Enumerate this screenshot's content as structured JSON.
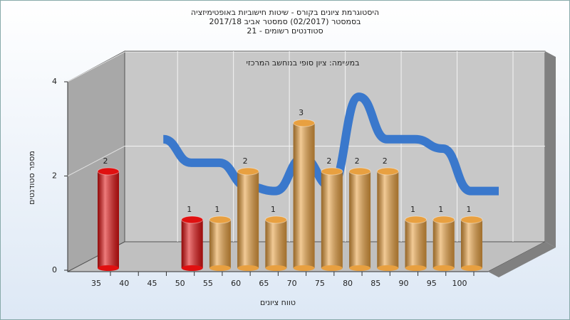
{
  "chart_data": {
    "type": "bar3d",
    "title": "היסטוגרמת ציונים בקורס - שיטות חישוביות באופטימיזציה",
    "subtitle_lines": [
      "בסמסטר  (02/2017)  סמסטר אביב 2017/18",
      "סטודנטים רשומים - 21"
    ],
    "annotation": "במשימה: ציון סופי במחשב המרכזי",
    "x_label": "טווח ציונים",
    "y_label": "מספר סטודנטים",
    "categories": [
      "35",
      "40",
      "45",
      "50",
      "55",
      "60",
      "65",
      "70",
      "75",
      "80",
      "85",
      "90",
      "95",
      "100"
    ],
    "values": [
      2,
      0,
      0,
      1,
      1,
      2,
      1,
      3,
      2,
      2,
      2,
      1,
      1,
      1
    ],
    "value_labels": [
      "2",
      null,
      null,
      "1",
      "1",
      "2",
      "1",
      "3",
      "2",
      "2",
      "2",
      "1",
      "1",
      "1"
    ],
    "colors": [
      "#e01010",
      "#e01010",
      "#e01010",
      "#e01010",
      "#e8a040",
      "#e8a040",
      "#e8a040",
      "#e8a040",
      "#e8a040",
      "#e8a040",
      "#e8a040",
      "#e8a040",
      "#e8a040",
      "#e8a040"
    ],
    "curve": {
      "color": "#3a78cc",
      "values": [
        null,
        2.4,
        1.9,
        1.9,
        1.4,
        1.3,
        2.0,
        1.4,
        3.3,
        2.4,
        2.4,
        2.2,
        1.3,
        1.3
      ]
    },
    "ylim": [
      0,
      4
    ],
    "yticks": [
      0,
      2,
      4
    ],
    "grid": true
  }
}
